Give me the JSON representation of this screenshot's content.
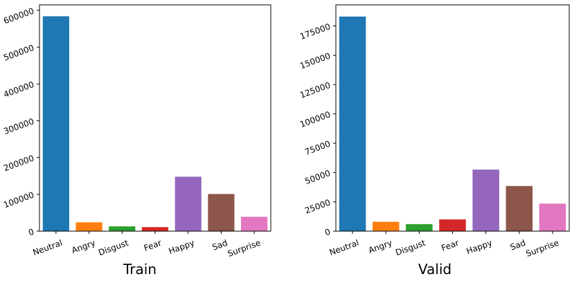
{
  "chart_data": [
    {
      "type": "bar",
      "title": "Train",
      "categories": [
        "Neutral",
        "Angry",
        "Disgust",
        "Fear",
        "Happy",
        "Sad",
        "Surprise"
      ],
      "values": [
        584000,
        24000,
        13000,
        11000,
        148000,
        101000,
        39000
      ],
      "colors": [
        "#1f77b4",
        "#ff7f0e",
        "#2ca02c",
        "#d62728",
        "#9467bd",
        "#8c564b",
        "#e377c2"
      ],
      "yticks": [
        0,
        100000,
        200000,
        300000,
        400000,
        500000,
        600000
      ],
      "ylim": [
        0,
        615000
      ],
      "grid": false
    },
    {
      "type": "bar",
      "title": "Valid",
      "categories": [
        "Neutral",
        "Angry",
        "Disgust",
        "Fear",
        "Happy",
        "Sad",
        "Surprise"
      ],
      "values": [
        183000,
        8000,
        6000,
        10000,
        52500,
        38500,
        23500
      ],
      "colors": [
        "#1f77b4",
        "#ff7f0e",
        "#2ca02c",
        "#d62728",
        "#9467bd",
        "#8c564b",
        "#e377c2"
      ],
      "yticks": [
        0,
        25000,
        50000,
        75000,
        100000,
        125000,
        150000,
        175000
      ],
      "ylim": [
        0,
        193000
      ],
      "grid": false
    }
  ]
}
